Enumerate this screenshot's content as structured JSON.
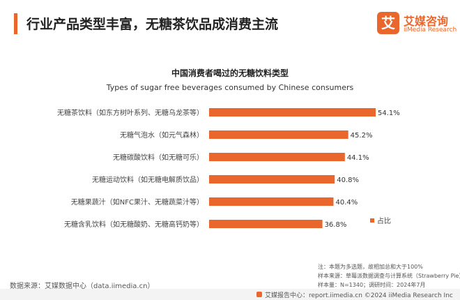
{
  "header": {
    "title": "行业产品类型丰富，无糖茶饮品成消费主流",
    "accent_color": "#e9662c"
  },
  "logo": {
    "mark": "艾",
    "name_cn": "艾媒咨询",
    "name_en": "iiMedia Research"
  },
  "chart_data": {
    "type": "bar",
    "orientation": "horizontal",
    "title": "中国消费者喝过的无糖饮料类型",
    "subtitle": "Types of sugar free beverages consumed by Chinese consumers",
    "categories": [
      "无糖茶饮料（如东方树叶系列、无糖乌龙茶等）",
      "无糖气泡水（如元气森林）",
      "无糖碳酸饮料（如无糖可乐）",
      "无糖运动饮料（如无糖电解质饮品）",
      "无糖果蔬汁（如NFC果汁、无糖蔬菜汁等）",
      "无糖含乳饮料（如无糖酸奶、无糖高钙奶等）"
    ],
    "series": [
      {
        "name": "占比",
        "values": [
          54.1,
          45.2,
          44.1,
          40.8,
          40.4,
          36.8
        ],
        "value_labels": [
          "54.1%",
          "45.2%",
          "44.1%",
          "40.8%",
          "40.4%",
          "36.8%"
        ],
        "color": "#e9662c"
      }
    ],
    "xlim": [
      0,
      54.1
    ],
    "grid": false,
    "legend_position": "right"
  },
  "notes": {
    "line1": "注：本题为多选题，故相加总和大于100%",
    "line2": "样本来源：草莓派数据调查与计算系统（Strawberry Pie）",
    "line3": "样本量：N=1340；调研时间：2024年7月"
  },
  "source": "数据来源：艾媒数据中心（data.iimedia.cn）",
  "footer": {
    "text": "艾媒报告中心：report.iimedia.cn   ©2024  iiMedia Research  Inc"
  }
}
